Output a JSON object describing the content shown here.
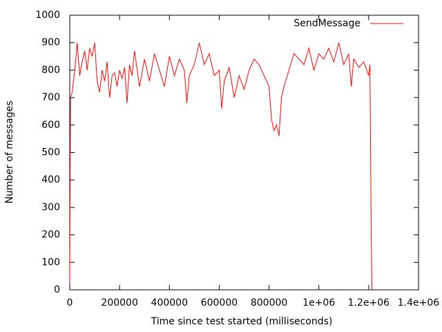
{
  "chart_data": {
    "type": "line",
    "xlabel": "Time since test started (milliseconds)",
    "ylabel": "Number of messages",
    "legend": "top-right",
    "xlim": [
      0,
      1400000
    ],
    "ylim": [
      0,
      1000
    ],
    "xticks": [
      0,
      200000,
      400000,
      600000,
      800000,
      {
        "value": 1000000,
        "label": "1e+06"
      },
      {
        "value": 1200000,
        "label": "1.2e+06"
      },
      {
        "value": 1400000,
        "label": "1.4e+06"
      }
    ],
    "yticks": [
      0,
      100,
      200,
      300,
      400,
      500,
      600,
      700,
      800,
      900,
      1000
    ],
    "x": [
      0,
      3000,
      10000,
      20000,
      30000,
      40000,
      50000,
      60000,
      70000,
      80000,
      90000,
      100000,
      110000,
      120000,
      130000,
      140000,
      150000,
      160000,
      170000,
      180000,
      190000,
      200000,
      210000,
      220000,
      230000,
      240000,
      250000,
      260000,
      280000,
      300000,
      320000,
      340000,
      360000,
      380000,
      400000,
      420000,
      440000,
      460000,
      470000,
      480000,
      500000,
      520000,
      540000,
      560000,
      580000,
      600000,
      610000,
      620000,
      640000,
      660000,
      680000,
      700000,
      720000,
      740000,
      760000,
      780000,
      800000,
      810000,
      820000,
      830000,
      840000,
      850000,
      860000,
      880000,
      900000,
      920000,
      940000,
      960000,
      980000,
      1000000,
      1020000,
      1040000,
      1060000,
      1080000,
      1100000,
      1120000,
      1130000,
      1140000,
      1160000,
      1180000,
      1200000,
      1205000,
      1210000,
      1213000
    ],
    "series": [
      {
        "name": "SendMessage",
        "color": "#ff0000",
        "values": [
          20,
          700,
          720,
          800,
          900,
          780,
          830,
          870,
          800,
          880,
          850,
          900,
          760,
          720,
          800,
          760,
          830,
          700,
          780,
          790,
          740,
          800,
          770,
          810,
          680,
          820,
          780,
          870,
          740,
          840,
          760,
          860,
          800,
          740,
          850,
          780,
          840,
          800,
          680,
          780,
          820,
          900,
          820,
          860,
          780,
          800,
          660,
          760,
          810,
          700,
          780,
          730,
          800,
          840,
          820,
          780,
          740,
          620,
          580,
          600,
          560,
          700,
          740,
          800,
          860,
          840,
          820,
          880,
          800,
          860,
          840,
          880,
          830,
          900,
          820,
          860,
          740,
          840,
          810,
          830,
          780,
          820,
          230,
          0
        ]
      }
    ]
  }
}
